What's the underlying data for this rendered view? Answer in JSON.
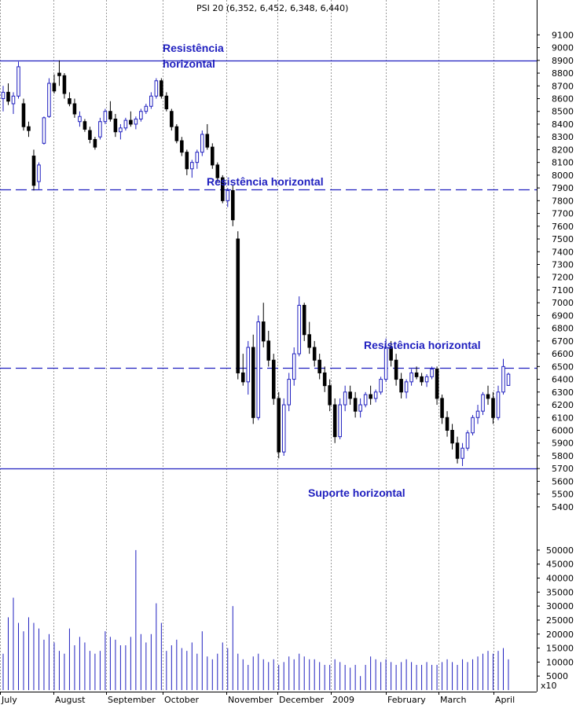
{
  "chart_data": {
    "type": "candlestick",
    "title": "PSI 20 (6,352, 6,452, 6,348, 6,440)",
    "price_axis": {
      "ylim": [
        5350,
        9250
      ],
      "ticks": [
        9100,
        9000,
        8900,
        8800,
        8700,
        8600,
        8500,
        8400,
        8300,
        8200,
        8100,
        8000,
        7900,
        7800,
        7700,
        7600,
        7500,
        7400,
        7300,
        7200,
        7100,
        7000,
        6900,
        6800,
        6700,
        6600,
        6500,
        6400,
        6300,
        6200,
        6100,
        6000,
        5900,
        5800,
        5700,
        5600,
        5500,
        5400
      ]
    },
    "volume_axis": {
      "ylim": [
        0,
        57000
      ],
      "ticks": [
        50000,
        45000,
        40000,
        35000,
        30000,
        25000,
        20000,
        15000,
        10000,
        5000
      ],
      "multiplier_label": "x10"
    },
    "x_labels": [
      "July",
      "August",
      "September",
      "October",
      "November",
      "December",
      "2009",
      "February",
      "March",
      "April"
    ],
    "colors": {
      "up": "#1f1fbf",
      "down": "#000000",
      "line": "#1f1fbf",
      "volume": "#1f1fbf",
      "grid": "#9a9a9a"
    },
    "candles": [
      [
        0,
        8600,
        8700,
        8500,
        8650
      ],
      [
        1,
        8650,
        8720,
        8550,
        8580
      ],
      [
        2,
        8560,
        8650,
        8480,
        8620
      ],
      [
        3,
        8620,
        8890,
        8600,
        8850
      ],
      [
        4,
        8560,
        8600,
        8350,
        8380
      ],
      [
        5,
        8380,
        8420,
        8300,
        8350
      ],
      [
        6,
        8150,
        8200,
        7880,
        7920
      ],
      [
        7,
        7950,
        8100,
        7890,
        8080
      ],
      [
        8,
        8250,
        8460,
        8240,
        8450
      ],
      [
        9,
        8460,
        8760,
        8450,
        8720
      ],
      [
        10,
        8720,
        8790,
        8640,
        8660
      ],
      [
        11,
        8800,
        8900,
        8700,
        8780
      ],
      [
        12,
        8780,
        8800,
        8600,
        8640
      ],
      [
        13,
        8600,
        8650,
        8540,
        8560
      ],
      [
        14,
        8560,
        8600,
        8450,
        8480
      ],
      [
        15,
        8420,
        8500,
        8380,
        8460
      ],
      [
        16,
        8420,
        8440,
        8340,
        8360
      ],
      [
        17,
        8350,
        8380,
        8250,
        8280
      ],
      [
        18,
        8280,
        8300,
        8200,
        8220
      ],
      [
        19,
        8300,
        8450,
        8280,
        8420
      ],
      [
        20,
        8420,
        8520,
        8400,
        8500
      ],
      [
        21,
        8500,
        8580,
        8420,
        8440
      ],
      [
        22,
        8440,
        8480,
        8300,
        8340
      ],
      [
        23,
        8340,
        8400,
        8280,
        8370
      ],
      [
        24,
        8370,
        8450,
        8350,
        8430
      ],
      [
        25,
        8430,
        8500,
        8380,
        8400
      ],
      [
        26,
        8400,
        8460,
        8360,
        8440
      ],
      [
        27,
        8440,
        8520,
        8420,
        8500
      ],
      [
        28,
        8500,
        8560,
        8480,
        8540
      ],
      [
        29,
        8540,
        8650,
        8520,
        8620
      ],
      [
        30,
        8620,
        8760,
        8600,
        8740
      ],
      [
        31,
        8740,
        8760,
        8600,
        8620
      ],
      [
        32,
        8620,
        8650,
        8500,
        8520
      ],
      [
        33,
        8500,
        8520,
        8350,
        8380
      ],
      [
        34,
        8380,
        8400,
        8250,
        8270
      ],
      [
        35,
        8270,
        8300,
        8150,
        8180
      ],
      [
        36,
        8180,
        8200,
        8000,
        8050
      ],
      [
        37,
        8050,
        8120,
        7980,
        8100
      ],
      [
        38,
        8100,
        8200,
        8050,
        8180
      ],
      [
        39,
        8180,
        8350,
        8150,
        8320
      ],
      [
        40,
        8320,
        8400,
        8200,
        8220
      ],
      [
        41,
        8220,
        8250,
        8050,
        8080
      ],
      [
        42,
        8080,
        8100,
        7950,
        7980
      ],
      [
        43,
        7980,
        8000,
        7780,
        7800
      ],
      [
        44,
        7800,
        7900,
        7750,
        7880
      ],
      [
        45,
        7880,
        7920,
        7600,
        7650
      ],
      [
        46,
        7500,
        7560,
        6400,
        6450
      ],
      [
        47,
        6450,
        6600,
        6350,
        6380
      ],
      [
        48,
        6380,
        6700,
        6280,
        6650
      ],
      [
        49,
        6650,
        6750,
        6050,
        6100
      ],
      [
        50,
        6100,
        6900,
        6080,
        6850
      ],
      [
        51,
        6850,
        7000,
        6650,
        6700
      ],
      [
        52,
        6700,
        6780,
        6500,
        6550
      ],
      [
        53,
        6550,
        6600,
        6200,
        6250
      ],
      [
        54,
        6250,
        6300,
        5780,
        5830
      ],
      [
        55,
        5830,
        6250,
        5800,
        6200
      ],
      [
        56,
        6200,
        6450,
        6150,
        6400
      ],
      [
        57,
        6400,
        6650,
        6350,
        6600
      ],
      [
        58,
        6600,
        7050,
        6580,
        6980
      ],
      [
        59,
        6980,
        7000,
        6700,
        6750
      ],
      [
        60,
        6750,
        6850,
        6600,
        6650
      ],
      [
        61,
        6650,
        6700,
        6500,
        6550
      ],
      [
        62,
        6550,
        6600,
        6400,
        6450
      ],
      [
        63,
        6450,
        6500,
        6300,
        6350
      ],
      [
        64,
        6350,
        6400,
        6150,
        6200
      ],
      [
        65,
        6200,
        6250,
        5900,
        5950
      ],
      [
        66,
        5950,
        6250,
        5930,
        6200
      ],
      [
        67,
        6200,
        6350,
        6150,
        6300
      ],
      [
        68,
        6300,
        6350,
        6200,
        6250
      ],
      [
        69,
        6250,
        6300,
        6100,
        6150
      ],
      [
        70,
        6150,
        6250,
        6100,
        6200
      ],
      [
        71,
        6200,
        6300,
        6180,
        6280
      ],
      [
        72,
        6280,
        6350,
        6200,
        6250
      ],
      [
        73,
        6250,
        6320,
        6220,
        6300
      ],
      [
        74,
        6300,
        6420,
        6280,
        6400
      ],
      [
        75,
        6400,
        6720,
        6380,
        6650
      ],
      [
        76,
        6650,
        6700,
        6500,
        6550
      ],
      [
        77,
        6550,
        6600,
        6350,
        6400
      ],
      [
        78,
        6400,
        6450,
        6250,
        6300
      ],
      [
        79,
        6300,
        6400,
        6250,
        6380
      ],
      [
        80,
        6380,
        6480,
        6350,
        6450
      ],
      [
        81,
        6450,
        6500,
        6400,
        6420
      ],
      [
        82,
        6420,
        6450,
        6350,
        6380
      ],
      [
        83,
        6380,
        6440,
        6340,
        6420
      ],
      [
        84,
        6420,
        6500,
        6400,
        6480
      ],
      [
        85,
        6480,
        6500,
        6200,
        6250
      ],
      [
        86,
        6250,
        6280,
        6050,
        6100
      ],
      [
        87,
        6100,
        6150,
        5950,
        6000
      ],
      [
        88,
        6000,
        6050,
        5850,
        5900
      ],
      [
        89,
        5900,
        5950,
        5740,
        5780
      ],
      [
        90,
        5780,
        5900,
        5720,
        5860
      ],
      [
        91,
        5860,
        6000,
        5840,
        5980
      ],
      [
        92,
        5980,
        6120,
        5960,
        6100
      ],
      [
        93,
        6100,
        6200,
        6050,
        6150
      ],
      [
        94,
        6150,
        6300,
        6120,
        6280
      ],
      [
        95,
        6280,
        6350,
        6200,
        6250
      ],
      [
        96,
        6250,
        6300,
        6050,
        6100
      ],
      [
        97,
        6100,
        6350,
        6080,
        6300
      ],
      [
        98,
        6300,
        6560,
        6280,
        6500
      ],
      [
        99,
        6352,
        6452,
        6348,
        6440
      ]
    ],
    "volume": [
      13000,
      26000,
      33000,
      24000,
      21000,
      26000,
      24000,
      22000,
      18000,
      20000,
      17000,
      14000,
      13000,
      22000,
      16000,
      19000,
      17000,
      14000,
      13000,
      14000,
      21000,
      19000,
      18000,
      16000,
      16000,
      19000,
      50000,
      20000,
      17000,
      20000,
      31000,
      24000,
      14000,
      16000,
      18000,
      15000,
      14000,
      17000,
      13000,
      21000,
      12000,
      11000,
      13000,
      17000,
      15000,
      30000,
      13000,
      11000,
      9000,
      12000,
      13000,
      11000,
      10000,
      11000,
      9000,
      10000,
      12000,
      11000,
      13000,
      12000,
      11000,
      11000,
      10000,
      9000,
      9000,
      11000,
      10000,
      9000,
      8000,
      9000,
      5000,
      9000,
      12000,
      11000,
      10000,
      11000,
      10000,
      9000,
      10000,
      11000,
      10000,
      9000,
      9000,
      10000,
      9000,
      9000,
      10000,
      11000,
      10000,
      9000,
      11000,
      10000,
      11000,
      12000,
      13000,
      14000,
      13000,
      14000,
      15000,
      11000
    ],
    "levels": [
      {
        "price": 8900,
        "style": "solid"
      },
      {
        "price": 7890,
        "style": "dashed"
      },
      {
        "price": 6490,
        "style": "dashed"
      },
      {
        "price": 5700,
        "style": "solid"
      }
    ],
    "annotations": [
      "Resistência horizontal",
      "Resistência horizontal",
      "Resistência horizontal",
      "Suporte horizontal"
    ]
  }
}
